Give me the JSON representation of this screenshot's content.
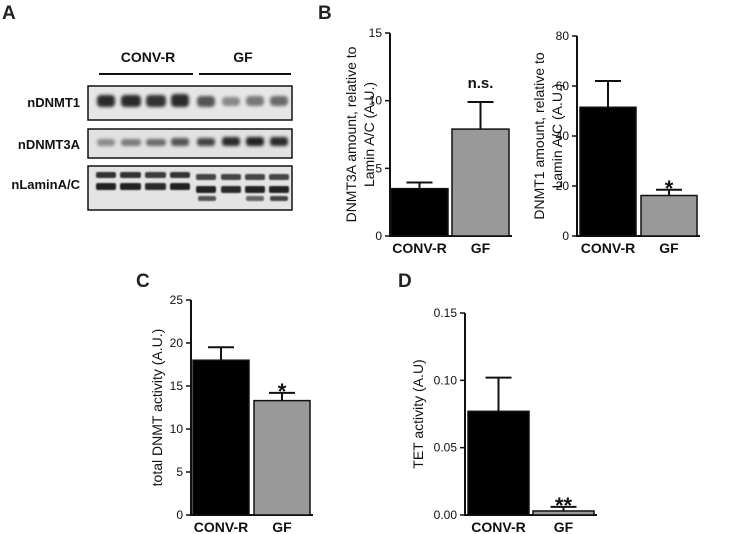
{
  "figure": {
    "panel_letters": {
      "a": "A",
      "b": "B",
      "c": "C",
      "d": "D"
    }
  },
  "blot": {
    "groups": [
      "CONV-R",
      "GF"
    ],
    "rows": [
      {
        "label": "nDNMT1"
      },
      {
        "label": "nDNMT3A"
      },
      {
        "label": "nLaminA/C"
      }
    ]
  },
  "chart_data": [
    {
      "id": "B-left",
      "type": "bar",
      "categories": [
        "CONV-R",
        "GF"
      ],
      "values": [
        3.5,
        7.9
      ],
      "errors": [
        0.45,
        2.0
      ],
      "colors": [
        "#000000",
        "#999999"
      ],
      "ylabel_lines": [
        "DNMT3A amount, relative to",
        "Lamin A/C (A.U.)"
      ],
      "ylim": [
        0,
        15
      ],
      "yticks": [
        0,
        5,
        10,
        15
      ],
      "annotations": [
        "",
        "n.s."
      ]
    },
    {
      "id": "B-right",
      "type": "bar",
      "categories": [
        "CONV-R",
        "GF"
      ],
      "values": [
        51.5,
        16.2
      ],
      "errors": [
        10.5,
        2.3
      ],
      "colors": [
        "#000000",
        "#999999"
      ],
      "ylabel_lines": [
        "DNMT1 amount, relative to",
        "Lamin A/C (A.U.)"
      ],
      "ylim": [
        0,
        80
      ],
      "yticks": [
        0,
        20,
        40,
        60,
        80
      ],
      "annotations": [
        "",
        "*"
      ]
    },
    {
      "id": "C",
      "type": "bar",
      "categories": [
        "CONV-R",
        "GF"
      ],
      "values": [
        18.0,
        13.3
      ],
      "errors": [
        1.5,
        0.9
      ],
      "colors": [
        "#000000",
        "#999999"
      ],
      "ylabel_lines": [
        "total DNMT activity (A.U.)"
      ],
      "ylim": [
        0,
        25
      ],
      "yticks": [
        0,
        5,
        10,
        15,
        20,
        25
      ],
      "annotations": [
        "",
        "*"
      ]
    },
    {
      "id": "D",
      "type": "bar",
      "categories": [
        "CONV-R",
        "GF"
      ],
      "values": [
        0.077,
        0.003
      ],
      "errors": [
        0.025,
        0.003
      ],
      "colors": [
        "#000000",
        "#999999"
      ],
      "ylabel_lines": [
        "TET activity (A.U)"
      ],
      "ylim": [
        0,
        0.15
      ],
      "yticks": [
        "0.00",
        "0.05",
        "0.10",
        "0.15"
      ],
      "annotations": [
        "",
        "**"
      ]
    }
  ]
}
